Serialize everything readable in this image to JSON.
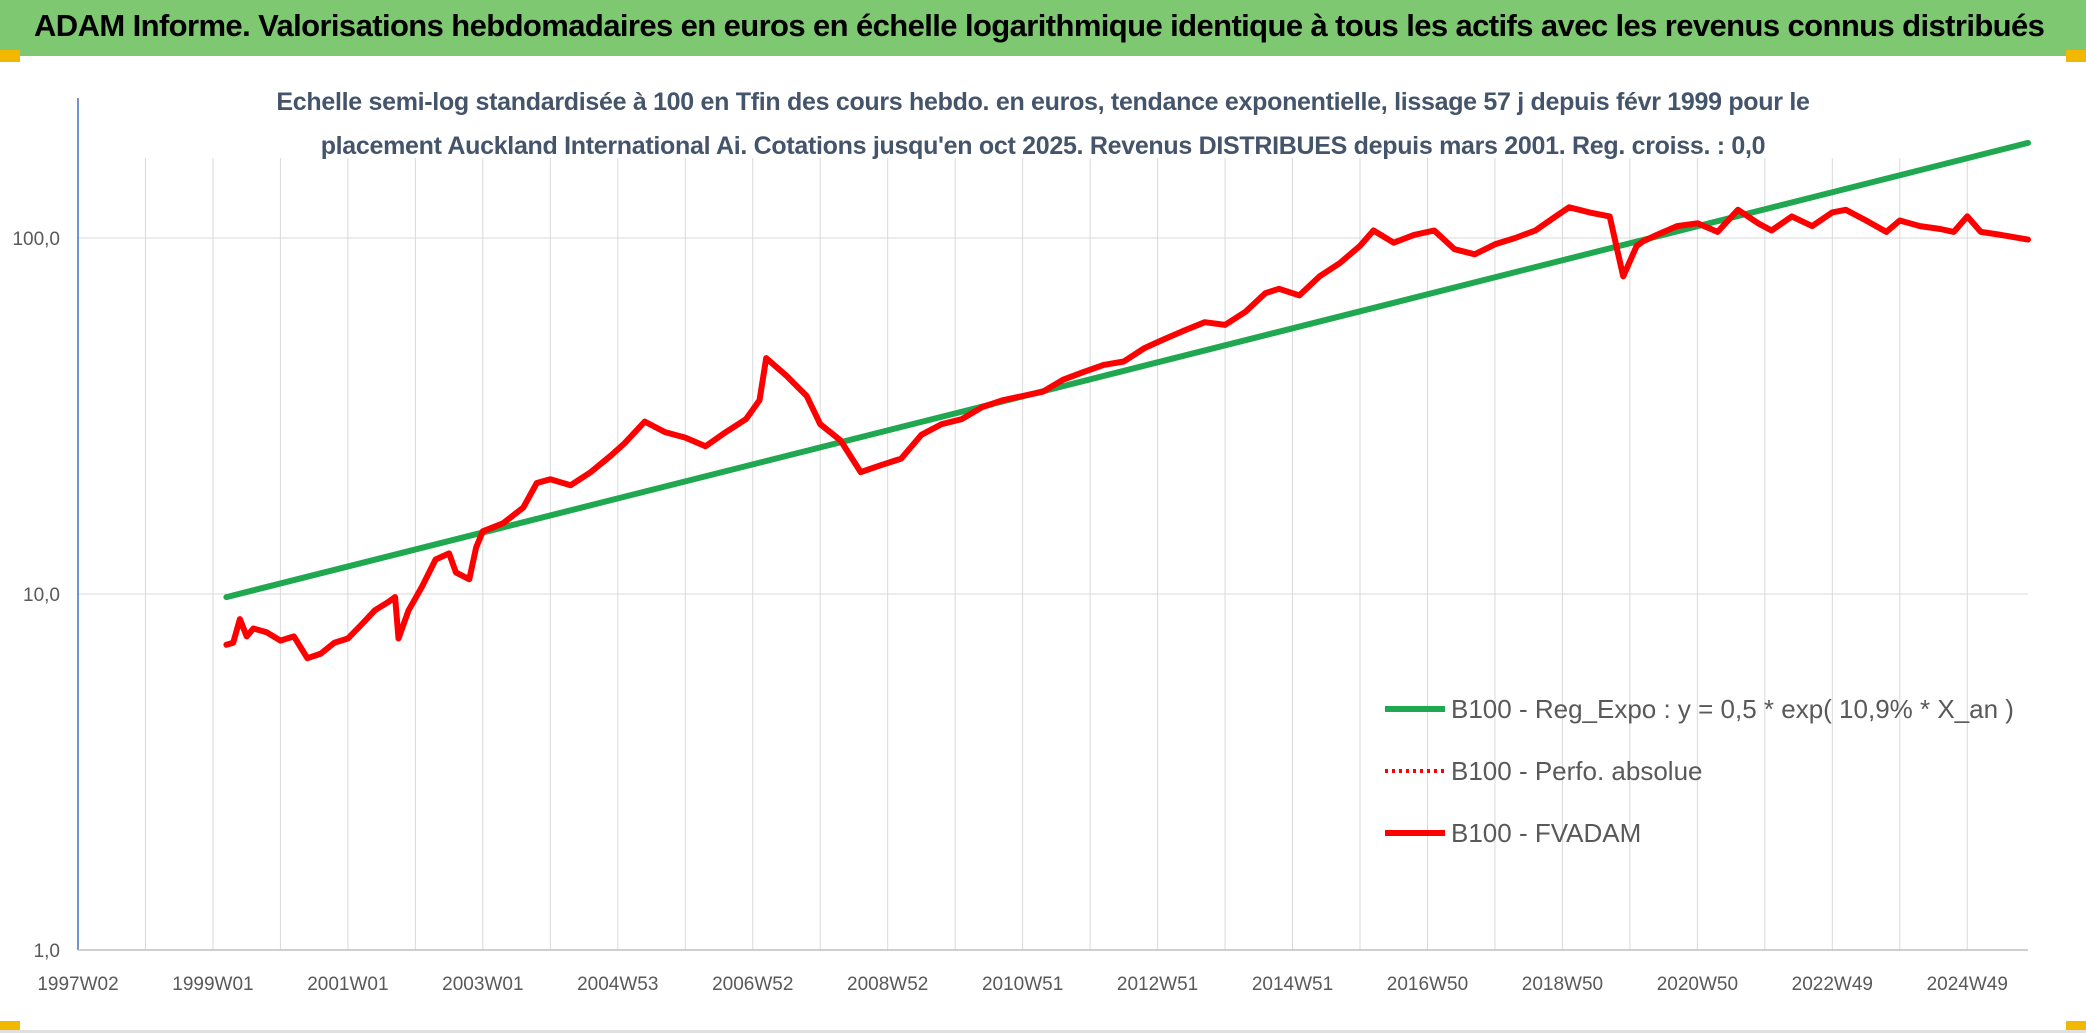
{
  "header": {
    "title": "ADAM Informe. Valorisations hebdomadaires en euros en échelle logarithmique identique à tous les actifs avec les revenus connus distribués"
  },
  "colors": {
    "header_bg": "#7dc870",
    "trend": "#1fa84f",
    "series": "#ff0000",
    "subtitle": "#44546a",
    "corner_accent": "#f2b800"
  },
  "chart_data": {
    "type": "line",
    "subtitle_line1": "Echelle semi-log standardisée à 100 en Tfin des cours hebdo. en euros, tendance exponentielle, lissage 57 j depuis févr 1999 pour le",
    "subtitle_line2": "placement Auckland International Ai. Cotations jusqu'en oct 2025. Revenus DISTRIBUES depuis mars 2001. Reg. croiss. : 0,0",
    "y_scale": "log",
    "ylim": [
      1,
      200
    ],
    "y_ticks": [
      "1,0",
      "10,0",
      "100,0"
    ],
    "y_tick_values": [
      1,
      10,
      100
    ],
    "xlim": [
      1997.0,
      2025.9
    ],
    "x_ticks": [
      "1997W02",
      "1999W01",
      "2001W01",
      "2003W01",
      "2004W53",
      "2006W52",
      "2008W52",
      "2010W51",
      "2012W51",
      "2014W51",
      "2016W50",
      "2018W50",
      "2020W50",
      "2022W49",
      "2024W49"
    ],
    "x_tick_values": [
      1997.0,
      1999.0,
      2001.0,
      2003.0,
      2005.0,
      2007.0,
      2009.0,
      2011.0,
      2013.0,
      2015.0,
      2017.0,
      2019.0,
      2021.0,
      2023.0,
      2025.0
    ],
    "grid": "vertical and horizontal",
    "legend_position": "right",
    "series": [
      {
        "name": "B100 - Reg_Expo : y = 0,5 * exp( 10,9% *  X_an )",
        "style": "solid-thick",
        "color": "#1fa84f",
        "x": [
          1999.2,
          2025.9
        ],
        "y": [
          9.8,
          185
        ]
      },
      {
        "name": "B100 - Perfo. absolue",
        "style": "dotted",
        "color": "#ff0000",
        "x": [],
        "y": []
      },
      {
        "name": "B100 - FVADAM",
        "style": "solid-thick",
        "color": "#ff0000",
        "x": [
          1999.2,
          1999.3,
          1999.4,
          1999.5,
          1999.6,
          1999.8,
          2000.0,
          2000.2,
          2000.4,
          2000.6,
          2000.8,
          2001.0,
          2001.2,
          2001.4,
          2001.6,
          2001.7,
          2001.75,
          2001.9,
          2002.1,
          2002.3,
          2002.5,
          2002.6,
          2002.8,
          2002.9,
          2003.0,
          2003.3,
          2003.6,
          2003.8,
          2004.0,
          2004.3,
          2004.6,
          2004.9,
          2005.1,
          2005.4,
          2005.7,
          2006.0,
          2006.3,
          2006.6,
          2006.9,
          2007.1,
          2007.2,
          2007.5,
          2007.8,
          2008.0,
          2008.3,
          2008.6,
          2008.9,
          2009.2,
          2009.5,
          2009.8,
          2010.1,
          2010.4,
          2010.7,
          2011.0,
          2011.3,
          2011.6,
          2011.9,
          2012.2,
          2012.5,
          2012.8,
          2013.1,
          2013.4,
          2013.7,
          2014.0,
          2014.3,
          2014.6,
          2014.8,
          2015.1,
          2015.4,
          2015.7,
          2016.0,
          2016.2,
          2016.5,
          2016.8,
          2017.1,
          2017.4,
          2017.7,
          2018.0,
          2018.3,
          2018.6,
          2018.9,
          2019.1,
          2019.4,
          2019.7,
          2019.9,
          2020.1,
          2020.2,
          2020.4,
          2020.7,
          2021.0,
          2021.3,
          2021.6,
          2021.9,
          2022.1,
          2022.4,
          2022.7,
          2023.0,
          2023.2,
          2023.5,
          2023.8,
          2024.0,
          2024.3,
          2024.6,
          2024.8,
          2025.0,
          2025.2,
          2025.5,
          2025.9
        ],
        "y": [
          7.2,
          7.3,
          8.5,
          7.6,
          8.0,
          7.8,
          7.4,
          7.6,
          6.6,
          6.8,
          7.3,
          7.5,
          8.2,
          9.0,
          9.5,
          9.8,
          7.5,
          9.0,
          10.5,
          12.5,
          13.0,
          11.5,
          11.0,
          13.5,
          15.0,
          15.8,
          17.5,
          20.5,
          21.0,
          20.2,
          22.0,
          24.5,
          26.5,
          30.5,
          28.5,
          27.5,
          26.0,
          28.5,
          31.0,
          35.0,
          46.0,
          41.0,
          36.0,
          30.0,
          27.0,
          22.0,
          23.0,
          24.0,
          28.0,
          30.0,
          31.0,
          33.5,
          35.0,
          36.0,
          37.0,
          40.0,
          42.0,
          44.0,
          45.0,
          49.0,
          52.0,
          55.0,
          58.0,
          57.0,
          62.0,
          70.0,
          72.0,
          69.0,
          78.0,
          85.0,
          95.0,
          105.0,
          97.0,
          102.0,
          105.0,
          93.0,
          90.0,
          96.0,
          100.0,
          105.0,
          115.0,
          122.0,
          118.0,
          115.0,
          78.0,
          95.0,
          98.0,
          102.0,
          108.0,
          110.0,
          104.0,
          120.0,
          110.0,
          105.0,
          115.0,
          108.0,
          118.0,
          120.0,
          112.0,
          104.0,
          112.0,
          108.0,
          106.0,
          104.0,
          115.0,
          104.0,
          102.0,
          99.0
        ]
      }
    ]
  }
}
